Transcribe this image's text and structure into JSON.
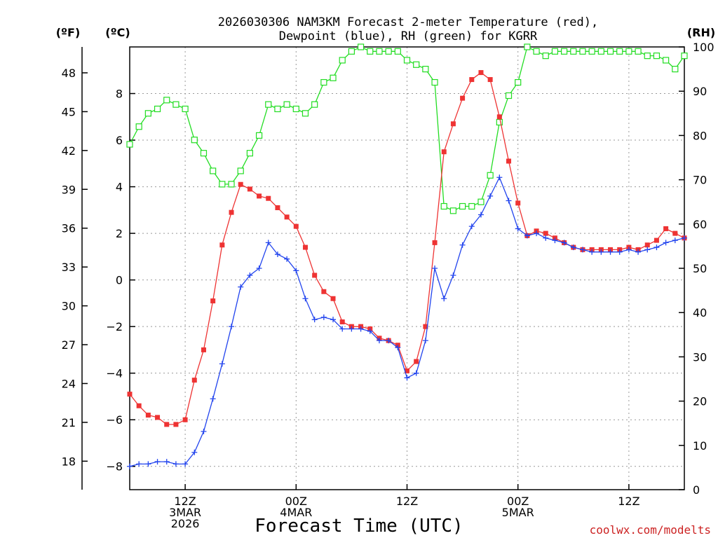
{
  "chart_data": {
    "type": "line",
    "title_line1": "2026030306 NAM3KM Forecast 2-meter Temperature (red),",
    "title_line2": "Dewpoint (blue), RH (green) for KGRR",
    "xlabel": "Forecast Time (UTC)",
    "credit": "coolwx.com/modelts",
    "units": {
      "fahrenheit": "(ºF)",
      "celsius": "(ºC)",
      "rh": "(RH)"
    },
    "x_range_hours": [
      6,
      66
    ],
    "x_ticks": [
      {
        "hour": 12,
        "line1": "12Z",
        "line2": "3MAR",
        "line3": "2026"
      },
      {
        "hour": 24,
        "line1": "00Z",
        "line2": "4MAR",
        "line3": ""
      },
      {
        "hour": 36,
        "line1": "12Z",
        "line2": "",
        "line3": ""
      },
      {
        "hour": 48,
        "line1": "00Z",
        "line2": "5MAR",
        "line3": ""
      },
      {
        "hour": 60,
        "line1": "12Z",
        "line2": "",
        "line3": ""
      }
    ],
    "celsius_range": [
      -9.0,
      10.0
    ],
    "celsius_ticks": [
      "-8",
      "-6",
      "-4",
      "-2",
      "0",
      "2",
      "4",
      "6",
      "8"
    ],
    "fahrenheit_ticks": [
      "18",
      "21",
      "24",
      "27",
      "30",
      "33",
      "36",
      "39",
      "42",
      "45",
      "48"
    ],
    "rh_range": [
      0,
      100
    ],
    "rh_ticks": [
      "0",
      "10",
      "20",
      "30",
      "40",
      "50",
      "60",
      "70",
      "80",
      "90",
      "100"
    ],
    "hours": [
      6,
      7,
      8,
      9,
      10,
      11,
      12,
      13,
      14,
      15,
      16,
      17,
      18,
      19,
      20,
      21,
      22,
      23,
      24,
      25,
      26,
      27,
      28,
      29,
      30,
      31,
      32,
      33,
      34,
      35,
      36,
      37,
      38,
      39,
      40,
      41,
      42,
      43,
      44,
      45,
      46,
      47,
      48,
      49,
      50,
      51,
      52,
      53,
      54,
      55,
      56,
      57,
      58,
      59,
      60,
      61,
      62,
      63,
      64,
      65,
      66
    ],
    "series": [
      {
        "name": "Temperature",
        "color": "#ee3333",
        "marker": "filled-square",
        "axis": "celsius",
        "values": [
          -4.9,
          -5.4,
          -5.8,
          -5.9,
          -6.2,
          -6.2,
          -6.0,
          -4.3,
          -3.0,
          -0.9,
          1.5,
          2.9,
          4.1,
          3.9,
          3.6,
          3.5,
          3.1,
          2.7,
          2.3,
          1.4,
          0.2,
          -0.5,
          -0.8,
          -1.8,
          -2.0,
          -2.0,
          -2.1,
          -2.5,
          -2.6,
          -2.8,
          -3.9,
          -3.5,
          -2.0,
          1.6,
          5.5,
          6.7,
          7.8,
          8.6,
          8.9,
          8.6,
          7.0,
          5.1,
          3.3,
          1.9,
          2.1,
          2.0,
          1.8,
          1.6,
          1.4,
          1.3,
          1.3,
          1.3,
          1.3,
          1.3,
          1.4,
          1.3,
          1.5,
          1.7,
          2.2,
          2.0,
          1.8
        ]
      },
      {
        "name": "Dewpoint",
        "color": "#2244ee",
        "marker": "plus",
        "axis": "celsius",
        "values": [
          -8.0,
          -7.9,
          -7.9,
          -7.8,
          -7.8,
          -7.9,
          -7.9,
          -7.4,
          -6.5,
          -5.1,
          -3.6,
          -2.0,
          -0.3,
          0.2,
          0.5,
          1.6,
          1.1,
          0.9,
          0.4,
          -0.8,
          -1.7,
          -1.6,
          -1.7,
          -2.1,
          -2.1,
          -2.1,
          -2.2,
          -2.6,
          -2.6,
          -2.9,
          -4.2,
          -4.0,
          -2.6,
          0.5,
          -0.8,
          0.2,
          1.5,
          2.3,
          2.8,
          3.6,
          4.4,
          3.4,
          2.2,
          1.9,
          2.0,
          1.8,
          1.7,
          1.6,
          1.4,
          1.3,
          1.2,
          1.2,
          1.2,
          1.2,
          1.3,
          1.2,
          1.3,
          1.4,
          1.6,
          1.7,
          1.8
        ]
      },
      {
        "name": "RH",
        "color": "#22dd22",
        "marker": "open-square",
        "axis": "rh",
        "values": [
          78,
          82,
          85,
          86,
          88,
          87,
          86,
          79,
          76,
          72,
          69,
          69,
          72,
          76,
          80,
          87,
          86,
          87,
          86,
          85,
          87,
          92,
          93,
          97,
          99,
          100,
          99,
          99,
          99,
          99,
          97,
          96,
          95,
          92,
          64,
          63,
          64,
          64,
          65,
          71,
          83,
          89,
          92,
          100,
          99,
          98,
          99,
          99,
          99,
          99,
          99,
          99,
          99,
          99,
          99,
          99,
          98,
          98,
          97,
          95,
          98
        ]
      }
    ]
  }
}
